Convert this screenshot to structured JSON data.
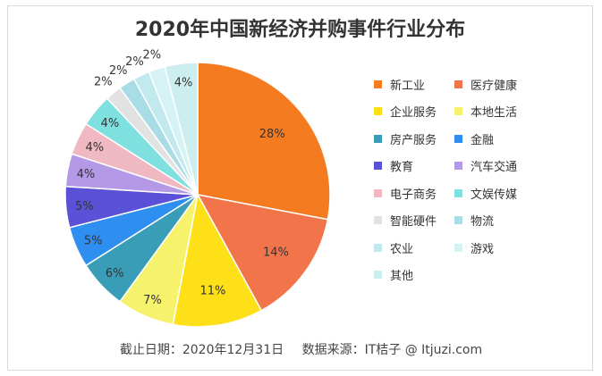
{
  "chart_data": {
    "type": "pie",
    "title": "2020年中国新经济并购事件行业分布",
    "unit": "%",
    "slices": [
      {
        "label": "新工业",
        "value": 28,
        "color": "#f47b20"
      },
      {
        "label": "医疗健康",
        "value": 14,
        "color": "#f2744a"
      },
      {
        "label": "企业服务",
        "value": 11,
        "color": "#fde018"
      },
      {
        "label": "本地生活",
        "value": 7,
        "color": "#f7f26b"
      },
      {
        "label": "房产服务",
        "value": 6,
        "color": "#3a9db8"
      },
      {
        "label": "金融",
        "value": 5,
        "color": "#2f8ff0"
      },
      {
        "label": "教育",
        "value": 5,
        "color": "#5b51d6"
      },
      {
        "label": "汽车交通",
        "value": 4,
        "color": "#b49ae6"
      },
      {
        "label": "电子商务",
        "value": 4,
        "color": "#efb8c2"
      },
      {
        "label": "文娱传媒",
        "value": 4,
        "color": "#7fe0e0"
      },
      {
        "label": "智能硬件",
        "value": 2,
        "color": "#e2e2e2"
      },
      {
        "label": "物流",
        "value": 2,
        "color": "#a9dde6"
      },
      {
        "label": "农业",
        "value": 2,
        "color": "#c2e9ee"
      },
      {
        "label": "游戏",
        "value": 2,
        "color": "#d5f2f4"
      },
      {
        "label": "其他",
        "value": 4,
        "color": "#cdeeef"
      }
    ]
  },
  "footer": {
    "date_text": "截止日期：2020年12月31日",
    "source_text": "数据来源：IT桔子 @ Itjuzi.com"
  }
}
